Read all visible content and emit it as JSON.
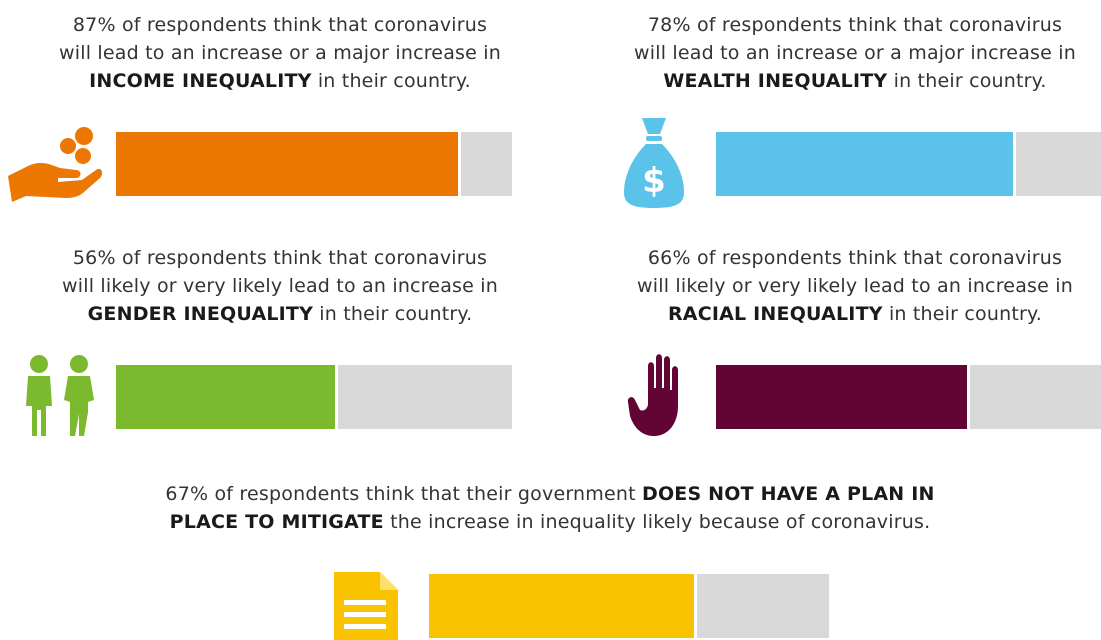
{
  "panels": [
    {
      "id": "income",
      "percent": 87,
      "color": "#ED7703",
      "icon": "hand-coins-icon",
      "line1": "87% of respondents think that coronavirus",
      "line2": "will lead to an increase or a major increase in",
      "highlight": "INCOME INEQUALITY",
      "tail": " in their country."
    },
    {
      "id": "wealth",
      "percent": 78,
      "color": "#5BC3EA",
      "icon": "money-bag-icon",
      "line1": "78% of respondents think that coronavirus",
      "line2": "will lead to an increase or a major increase in",
      "highlight": "WEALTH INEQUALITY",
      "tail": " in their country."
    },
    {
      "id": "gender",
      "percent": 56,
      "color": "#7BB92F",
      "icon": "people-icon",
      "line1": "56% of respondents think that coronavirus",
      "line2": "will likely or very likely lead to an increase in",
      "highlight": "GENDER INEQUALITY",
      "tail": " in their country."
    },
    {
      "id": "racial",
      "percent": 66,
      "color": "#620434",
      "icon": "raised-hand-icon",
      "line1": "66% of respondents think that coronavirus",
      "line2": "will likely or very likely lead to an increase in",
      "highlight": "RACIAL INEQUALITY",
      "tail": " in their country."
    }
  ],
  "bottom": {
    "percent": 67,
    "color": "#F9C300",
    "icon": "document-icon",
    "pre": "67% of respondents think that their government ",
    "highlight1": "DOES NOT HAVE A PLAN IN",
    "highlight2": "PLACE TO MITIGATE",
    "tail": " the increase in inequality likely because of coronavirus."
  },
  "chart_data": {
    "type": "bar",
    "categories": [
      "INCOME INEQUALITY",
      "WEALTH INEQUALITY",
      "GENDER INEQUALITY",
      "RACIAL INEQUALITY",
      "DOES NOT HAVE A PLAN IN PLACE TO MITIGATE"
    ],
    "values": [
      87,
      78,
      56,
      66,
      67
    ],
    "ylim": [
      0,
      100
    ],
    "colors": [
      "#ED7703",
      "#5BC3EA",
      "#7BB92F",
      "#620434",
      "#F9C300"
    ],
    "remainder_color": "#D9D9D9"
  }
}
